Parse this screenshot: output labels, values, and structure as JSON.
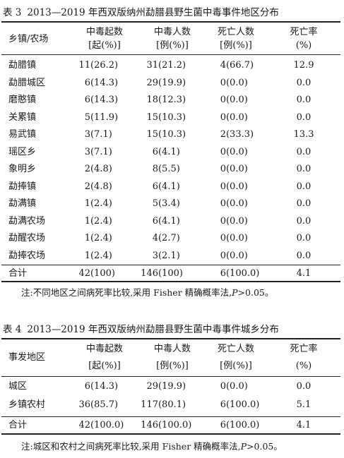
{
  "table3": {
    "caption_num": "表 3",
    "caption_text": "2013—2019 年西双版纳州勐腊县野生菌中毒事件地区分布",
    "headers": [
      {
        "line1": "乡镇/农场",
        "line2": ""
      },
      {
        "line1": "中毒起数",
        "line2": "[起(%)]"
      },
      {
        "line1": "中毒人数",
        "line2": "[例(%)]"
      },
      {
        "line1": "死亡人数",
        "line2": "[例(%)]"
      },
      {
        "line1": "死亡率",
        "line2": "(%)"
      }
    ],
    "rows": [
      [
        "勐腊镇",
        "11(26.2)",
        "31(21.2)",
        "4(66.7)",
        "12.9"
      ],
      [
        "勐腊城区",
        "6(14.3)",
        "29(19.9)",
        "0(0.0)",
        "0.0"
      ],
      [
        "磨憨镇",
        "6(14.3)",
        "18(12.3)",
        "0(0.0)",
        "0.0"
      ],
      [
        "关累镇",
        "5(11.9)",
        "15(10.3)",
        "0(0.0)",
        "0.0"
      ],
      [
        "易武镇",
        "3(7.1)",
        "15(10.3)",
        "2(33.3)",
        "13.3"
      ],
      [
        "瑶区乡",
        "3(7.1)",
        "6(4.1)",
        "0(0.0)",
        "0.0"
      ],
      [
        "象明乡",
        "2(4.8)",
        "8(5.5)",
        "0(0.0)",
        "0.0"
      ],
      [
        "勐捧镇",
        "2(4.8)",
        "6(4.1)",
        "0(0.0)",
        "0.0"
      ],
      [
        "勐满镇",
        "1(2.4)",
        "5(3.4)",
        "0(0.0)",
        "0.0"
      ],
      [
        "勐满农场",
        "1(2.4)",
        "6(4.1)",
        "0(0.0)",
        "0.0"
      ],
      [
        "勐醒农场",
        "1(2.4)",
        "4(2.7)",
        "0(0.0)",
        "0.0"
      ],
      [
        "勐捧农场",
        "1(2.4)",
        "3(2.1)",
        "0(0.0)",
        "0.0"
      ]
    ],
    "total": [
      "合计",
      "42(100)",
      "146(100)",
      "6(100.0)",
      "4.1"
    ],
    "note_prefix": "注:不同地区之间病死率比较,采用 Fisher 精确概率法,",
    "note_p": "P",
    "note_suffix": ">0.05。"
  },
  "table4": {
    "caption_num": "表 4",
    "caption_text": "2013—2019 年西双版纳州勐腊县野生菌中毒事件城乡分布",
    "headers": [
      {
        "line1": "事发地区",
        "line2": ""
      },
      {
        "line1": "中毒起数",
        "line2": "[起(%)]"
      },
      {
        "line1": "中毒人数",
        "line2": "[例(%)]"
      },
      {
        "line1": "死亡人数",
        "line2": "[例(%)]"
      },
      {
        "line1": "死亡率",
        "line2": "(%)"
      }
    ],
    "rows": [
      [
        "城区",
        "6(14.3)",
        "29(19.9)",
        "0(0.0)",
        "0.0"
      ],
      [
        "乡镇农村",
        "36(85.7)",
        "117(80.1)",
        "6(100.0)",
        "5.1"
      ]
    ],
    "total": [
      "合计",
      "42(100.0)",
      "146(100.0)",
      "6(100.0)",
      "4.1"
    ],
    "note_prefix": "注:城区和农村之间病死率比较,采用 Fisher 精确概率法,",
    "note_p": "P",
    "note_suffix": ">0.05。"
  }
}
